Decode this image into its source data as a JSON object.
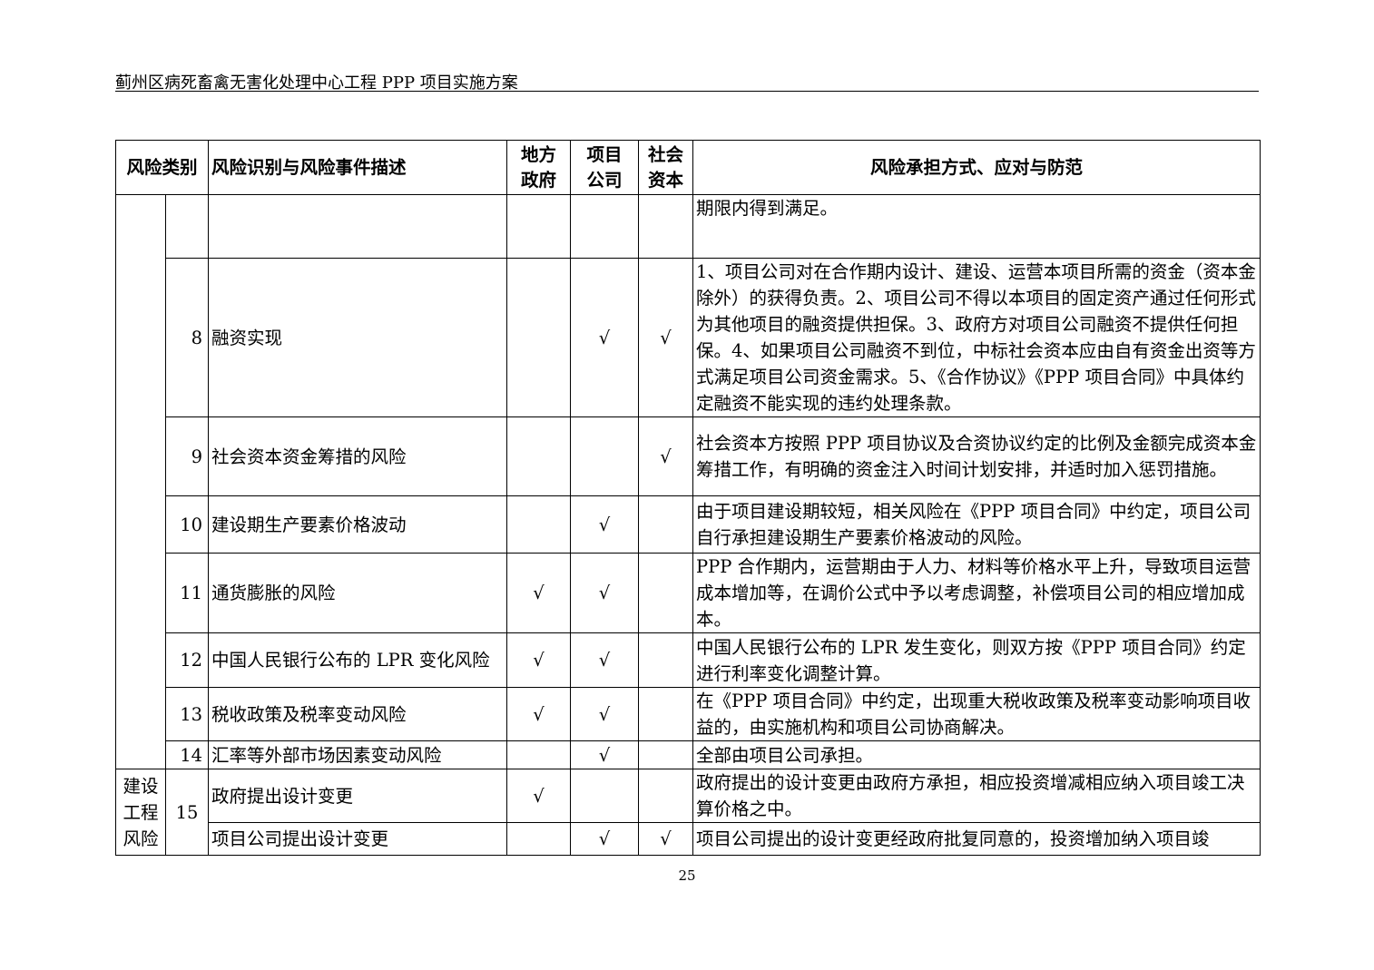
{
  "header": {
    "title": "蓟州区病死畜禽无害化处理中心工程 PPP 项目实施方案"
  },
  "table": {
    "headers": {
      "category": "风险类别",
      "description": "风险识别与风险事件描述",
      "gov": "地方\n政府",
      "company": "项目\n公司",
      "capital": "社会\n资本",
      "measures": "风险承担方式、应对与防范"
    },
    "check_mark": "√",
    "rows": [
      {
        "no": "",
        "desc": "",
        "gov": false,
        "company": false,
        "capital": false,
        "measures": "期限内得到满足。"
      },
      {
        "no": "8",
        "desc": "融资实现",
        "gov": false,
        "company": true,
        "capital": true,
        "measures": "1、项目公司对在合作期内设计、建设、运营本项目所需的资金（资本金除外）的获得负责。2、项目公司不得以本项目的固定资产通过任何形式为其他项目的融资提供担保。3、政府方对项目公司融资不提供任何担保。4、如果项目公司融资不到位，中标社会资本应由自有资金出资等方式满足项目公司资金需求。5、《合作协议》《PPP 项目合同》中具体约定融资不能实现的违约处理条款。"
      },
      {
        "no": "9",
        "desc": "社会资本资金筹措的风险",
        "gov": false,
        "company": false,
        "capital": true,
        "measures": "社会资本方按照 PPP 项目协议及合资协议约定的比例及金额完成资本金筹措工作，有明确的资金注入时间计划安排，并适时加入惩罚措施。"
      },
      {
        "no": "10",
        "desc": "建设期生产要素价格波动",
        "gov": false,
        "company": true,
        "capital": false,
        "measures": "由于项目建设期较短，相关风险在《PPP 项目合同》中约定，项目公司自行承担建设期生产要素价格波动的风险。"
      },
      {
        "no": "11",
        "desc": "通货膨胀的风险",
        "gov": true,
        "company": true,
        "capital": false,
        "measures": "PPP 合作期内，运营期由于人力、材料等价格水平上升，导致项目运营成本增加等，在调价公式中予以考虑调整，补偿项目公司的相应增加成本。"
      },
      {
        "no": "12",
        "desc": "中国人民银行公布的 LPR 变化风险",
        "gov": true,
        "company": true,
        "capital": false,
        "measures": "中国人民银行公布的 LPR 发生变化，则双方按《PPP 项目合同》约定进行利率变化调整计算。"
      },
      {
        "no": "13",
        "desc": "税收政策及税率变动风险",
        "gov": true,
        "company": true,
        "capital": false,
        "measures": "在《PPP 项目合同》中约定，出现重大税收政策及税率变动影响项目收益的，由实施机构和项目公司协商解决。"
      },
      {
        "no": "14",
        "desc": "汇率等外部市场因素变动风险",
        "gov": false,
        "company": true,
        "capital": false,
        "measures": "全部由项目公司承担。"
      },
      {
        "category": "建设工程风险",
        "no": "15",
        "desc": "政府提出设计变更",
        "gov": true,
        "company": false,
        "capital": false,
        "measures": "政府提出的设计变更由政府方承担，相应投资增减相应纳入项目竣工决算价格之中。"
      },
      {
        "desc": "项目公司提出设计变更",
        "gov": false,
        "company": true,
        "capital": true,
        "measures": "项目公司提出的设计变更经政府批复同意的，投资增加纳入项目竣"
      }
    ]
  },
  "footer": {
    "page_number": "25"
  }
}
